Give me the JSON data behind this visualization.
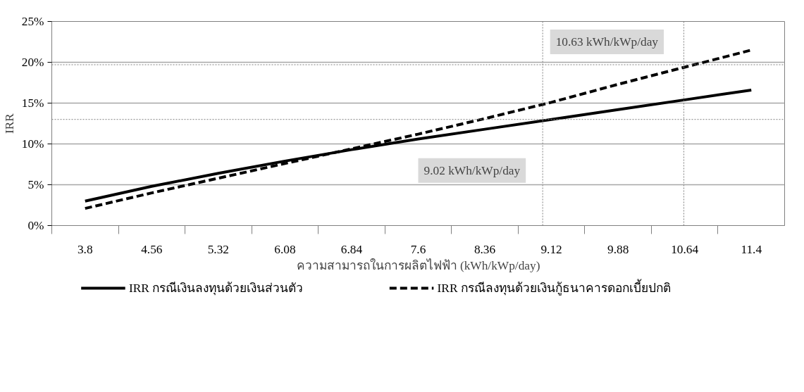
{
  "chart_data": {
    "type": "line",
    "xlabel": "ความสามารถในการผลิตไฟฟ้า (kWh/kWp/day)",
    "ylabel": "IRR",
    "x": [
      3.8,
      4.56,
      5.32,
      6.08,
      6.84,
      7.6,
      8.36,
      9.12,
      9.88,
      10.64,
      11.4
    ],
    "xlim": [
      3.42,
      11.78
    ],
    "xticks": [
      3.8,
      4.56,
      5.32,
      6.08,
      6.84,
      7.6,
      8.36,
      9.12,
      9.88,
      10.64,
      11.4
    ],
    "ylim": [
      0,
      25
    ],
    "yticks": [
      {
        "value": 0,
        "label": "0%"
      },
      {
        "value": 5,
        "label": "5%"
      },
      {
        "value": 10,
        "label": "10%"
      },
      {
        "value": 15,
        "label": "15%"
      },
      {
        "value": 20,
        "label": "20%"
      },
      {
        "value": 25,
        "label": "25%"
      }
    ],
    "series": [
      {
        "name": "IRR กรณีเงินลงทุนด้วยเงินส่วนตัว",
        "color": "#000000",
        "line_style": "solid",
        "values": [
          3.0,
          4.8,
          6.4,
          7.9,
          9.3,
          10.6,
          11.8,
          13.0,
          14.2,
          15.4,
          16.6
        ]
      },
      {
        "name": "IRR กรณีลงทุนด้วยเงินกู้ธนาคารดอกเบี้ยปกติ",
        "color": "#000000",
        "line_style": "dashed",
        "values": [
          2.1,
          4.0,
          5.8,
          7.6,
          9.4,
          11.2,
          13.1,
          15.1,
          17.3,
          19.4,
          21.5
        ]
      }
    ],
    "ref_lines": [
      {
        "axis": "x",
        "value": 9.02,
        "color": "#808080",
        "line_style": "dotted"
      },
      {
        "axis": "x",
        "value": 10.63,
        "color": "#808080",
        "line_style": "dotted"
      },
      {
        "axis": "y",
        "value": 13.0,
        "color": "#808080",
        "line_style": "dotted"
      },
      {
        "axis": "y",
        "value": 19.7,
        "color": "#808080",
        "line_style": "dotted"
      }
    ],
    "annotations": [
      "9.02 kWh/kWp/day",
      "10.63 kWh/kWp/day"
    ],
    "grid": "y",
    "legend": "bottom"
  }
}
